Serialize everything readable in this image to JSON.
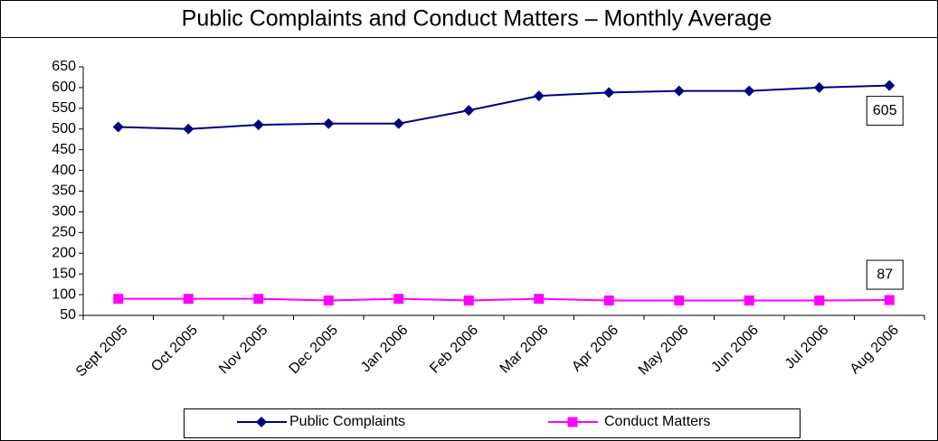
{
  "chart_data": {
    "type": "line",
    "title": "Public Complaints and Conduct Matters – Monthly Average",
    "categories": [
      "Sept 2005",
      "Oct 2005",
      "Nov 2005",
      "Dec 2005",
      "Jan 2006",
      "Feb 2006",
      "Mar 2006",
      "Apr 2006",
      "May 2006",
      "Jun 2006",
      "Jul 2006",
      "Aug 2006"
    ],
    "series": [
      {
        "name": "Public Complaints",
        "color": "#000080",
        "marker": "diamond",
        "values": [
          505,
          500,
          510,
          513,
          513,
          545,
          580,
          588,
          592,
          592,
          600,
          605
        ]
      },
      {
        "name": "Conduct Matters",
        "color": "#FF00FF",
        "marker": "square",
        "values": [
          90,
          90,
          90,
          86,
          90,
          86,
          90,
          86,
          86,
          86,
          86,
          87
        ]
      }
    ],
    "ylim": [
      50,
      650
    ],
    "yticks": [
      50,
      100,
      150,
      200,
      250,
      300,
      350,
      400,
      450,
      500,
      550,
      600,
      650
    ],
    "legend": "bottom"
  }
}
